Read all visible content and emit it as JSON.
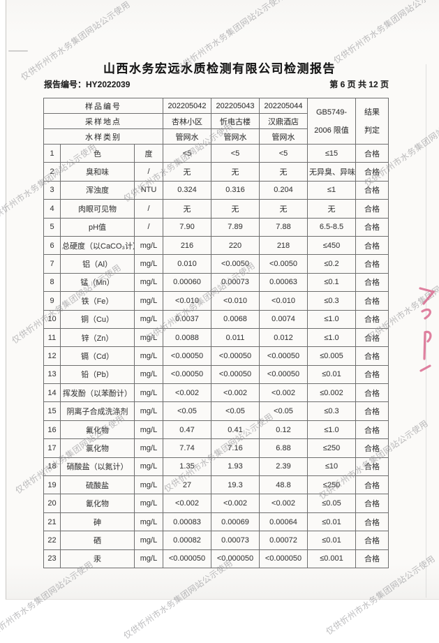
{
  "page": {
    "title": "山西水务宏远水质检测有限公司检测报告",
    "report_no": "报告编号：HY2022039",
    "page_indicator": "第 6 页 共 12 页"
  },
  "watermark": {
    "text": "仅供忻州市水务集团网站公示使用"
  },
  "stamp": {
    "color": "#d9628a"
  },
  "table": {
    "header": {
      "sample_no_label": "样品编号",
      "sample_nos": [
        "202205042",
        "202205043",
        "202205044"
      ],
      "location_label": "采样地点",
      "locations": [
        "杏林小区",
        "忻电古楼",
        "汉鼎酒店"
      ],
      "type_label": "水样类别",
      "types": [
        "管网水",
        "管网水",
        "管网水"
      ],
      "limit_line1": "GB5749-",
      "limit_line2": "2006 限值",
      "result_line1": "结果",
      "result_line2": "判定"
    },
    "rows": [
      {
        "no": "1",
        "item": "色",
        "unit": "度",
        "v1": "<5",
        "v2": "<5",
        "v3": "<5",
        "limit": "≤15",
        "result": "合格"
      },
      {
        "no": "2",
        "item": "臭和味",
        "unit": "/",
        "v1": "无",
        "v2": "无",
        "v3": "无",
        "limit": "无异臭、异味",
        "result": "合格"
      },
      {
        "no": "3",
        "item": "浑浊度",
        "unit": "NTU",
        "v1": "0.324",
        "v2": "0.316",
        "v3": "0.204",
        "limit": "≤1",
        "result": "合格"
      },
      {
        "no": "4",
        "item": "肉眼可见物",
        "unit": "/",
        "v1": "无",
        "v2": "无",
        "v3": "无",
        "limit": "无",
        "result": "合格"
      },
      {
        "no": "5",
        "item": "pH值",
        "unit": "/",
        "v1": "7.90",
        "v2": "7.89",
        "v3": "7.88",
        "limit": "6.5-8.5",
        "result": "合格"
      },
      {
        "no": "6",
        "item": "总硬度（以CaCO₃计）",
        "unit": "mg/L",
        "v1": "216",
        "v2": "220",
        "v3": "218",
        "limit": "≤450",
        "result": "合格"
      },
      {
        "no": "7",
        "item": "铝（Al）",
        "unit": "mg/L",
        "v1": "0.010",
        "v2": "<0.0050",
        "v3": "<0.0050",
        "limit": "≤0.2",
        "result": "合格"
      },
      {
        "no": "8",
        "item": "锰（Mn）",
        "unit": "mg/L",
        "v1": "0.00060",
        "v2": "0.00073",
        "v3": "0.00063",
        "limit": "≤0.1",
        "result": "合格"
      },
      {
        "no": "9",
        "item": "铁（Fe）",
        "unit": "mg/L",
        "v1": "<0.010",
        "v2": "<0.010",
        "v3": "<0.010",
        "limit": "≤0.3",
        "result": "合格"
      },
      {
        "no": "10",
        "item": "铜（Cu）",
        "unit": "mg/L",
        "v1": "0.0037",
        "v2": "0.0068",
        "v3": "0.0074",
        "limit": "≤1.0",
        "result": "合格"
      },
      {
        "no": "11",
        "item": "锌（Zn）",
        "unit": "mg/L",
        "v1": "0.0088",
        "v2": "0.011",
        "v3": "0.012",
        "limit": "≤1.0",
        "result": "合格"
      },
      {
        "no": "12",
        "item": "镉（Cd）",
        "unit": "mg/L",
        "v1": "<0.00050",
        "v2": "<0.00050",
        "v3": "<0.00050",
        "limit": "≤0.005",
        "result": "合格"
      },
      {
        "no": "13",
        "item": "铅（Pb）",
        "unit": "mg/L",
        "v1": "<0.00050",
        "v2": "<0.00050",
        "v3": "<0.00050",
        "limit": "≤0.01",
        "result": "合格"
      },
      {
        "no": "14",
        "item": "挥发酚（以苯酚计）",
        "unit": "mg/L",
        "v1": "<0.002",
        "v2": "<0.002",
        "v3": "<0.002",
        "limit": "≤0.002",
        "result": "合格"
      },
      {
        "no": "15",
        "item": "阴离子合成洗涤剂",
        "unit": "mg/L",
        "v1": "<0.05",
        "v2": "<0.05",
        "v3": "<0.05",
        "limit": "≤0.3",
        "result": "合格"
      },
      {
        "no": "16",
        "item": "氟化物",
        "unit": "mg/L",
        "v1": "0.47",
        "v2": "0.41",
        "v3": "0.12",
        "limit": "≤1.0",
        "result": "合格"
      },
      {
        "no": "17",
        "item": "氯化物",
        "unit": "mg/L",
        "v1": "7.74",
        "v2": "7.16",
        "v3": "6.88",
        "limit": "≤250",
        "result": "合格"
      },
      {
        "no": "18",
        "item": "硝酸盐（以氮计）",
        "unit": "mg/L",
        "v1": "1.35",
        "v2": "1.93",
        "v3": "2.39",
        "limit": "≤10",
        "result": "合格"
      },
      {
        "no": "19",
        "item": "硫酸盐",
        "unit": "mg/L",
        "v1": "27",
        "v2": "19.3",
        "v3": "48.8",
        "limit": "≤250",
        "result": "合格"
      },
      {
        "no": "20",
        "item": "氰化物",
        "unit": "mg/L",
        "v1": "<0.002",
        "v2": "<0.002",
        "v3": "<0.002",
        "limit": "≤0.05",
        "result": "合格"
      },
      {
        "no": "21",
        "item": "砷",
        "unit": "mg/L",
        "v1": "0.00083",
        "v2": "0.00069",
        "v3": "0.00064",
        "limit": "≤0.01",
        "result": "合格"
      },
      {
        "no": "22",
        "item": "硒",
        "unit": "mg/L",
        "v1": "0.00082",
        "v2": "0.00073",
        "v3": "0.00072",
        "limit": "≤0.01",
        "result": "合格"
      },
      {
        "no": "23",
        "item": "汞",
        "unit": "mg/L",
        "v1": "<0.000050",
        "v2": "<0.000050",
        "v3": "<0.000050",
        "limit": "≤0.001",
        "result": "合格"
      }
    ]
  }
}
